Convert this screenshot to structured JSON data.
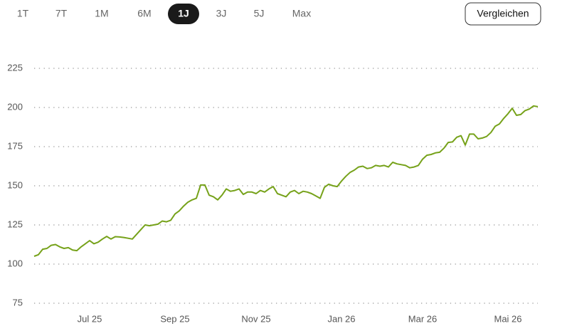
{
  "toolbar": {
    "ranges": [
      "1T",
      "7T",
      "1M",
      "6M",
      "1J",
      "3J",
      "5J",
      "Max"
    ],
    "selected": 4,
    "button": "Vergleichen"
  },
  "chart_data": {
    "type": "line",
    "categories": [
      null,
      null,
      null,
      null,
      null,
      null,
      null,
      null,
      null,
      null,
      null,
      null,
      null,
      "Jul 25",
      null,
      null,
      null,
      null,
      null,
      null,
      null,
      null,
      null,
      null,
      null,
      null,
      null,
      null,
      null,
      null,
      null,
      null,
      null,
      "Sep 25",
      null,
      null,
      null,
      null,
      null,
      null,
      null,
      null,
      null,
      null,
      null,
      null,
      null,
      null,
      null,
      null,
      null,
      null,
      "Nov 25",
      null,
      null,
      null,
      null,
      null,
      null,
      null,
      null,
      null,
      null,
      null,
      null,
      null,
      null,
      null,
      null,
      null,
      null,
      null,
      "Jan 26",
      null,
      null,
      null,
      null,
      null,
      null,
      null,
      null,
      null,
      null,
      null,
      null,
      null,
      null,
      null,
      null,
      null,
      null,
      "Mar 26",
      null,
      null,
      null,
      null,
      null,
      null,
      null,
      null,
      null,
      null,
      null,
      null,
      null,
      null,
      null,
      null,
      null,
      null,
      null,
      "Mai 26",
      null,
      null,
      null,
      null,
      null,
      null,
      null
    ],
    "values": [
      105,
      106,
      109.5,
      110,
      112,
      112.5,
      111,
      110,
      110.5,
      109,
      108.6,
      111,
      113,
      115,
      113,
      114,
      116,
      117.7,
      116,
      117.5,
      117.3,
      117,
      116.5,
      116,
      119,
      122,
      125,
      124.5,
      125,
      125.5,
      127.5,
      127,
      128,
      132,
      134,
      137,
      139.5,
      141,
      142,
      150.5,
      150.5,
      144,
      143,
      141,
      144,
      148,
      146.5,
      147,
      148,
      144.5,
      146,
      146,
      145,
      147,
      146,
      148,
      149.5,
      145,
      144,
      143,
      146,
      147,
      145,
      146.5,
      146,
      145,
      143.5,
      142,
      149,
      151,
      150,
      149.5,
      153,
      156,
      158.5,
      160,
      162,
      162.5,
      161,
      161.5,
      163,
      162.5,
      163,
      162,
      165,
      164,
      163.5,
      163,
      161.5,
      162,
      163,
      167,
      169.5,
      170,
      171,
      171.4,
      174,
      177.7,
      178,
      181,
      182,
      176,
      183,
      183,
      180,
      180.5,
      181.5,
      184,
      188,
      189.5,
      193,
      196,
      199.5,
      195,
      195.5,
      198,
      199,
      201,
      200.5
    ],
    "color": "#76a21a",
    "ylim": [
      75,
      225
    ],
    "yticks": [
      75,
      100,
      125,
      150,
      175,
      200,
      225
    ],
    "grid": true
  }
}
